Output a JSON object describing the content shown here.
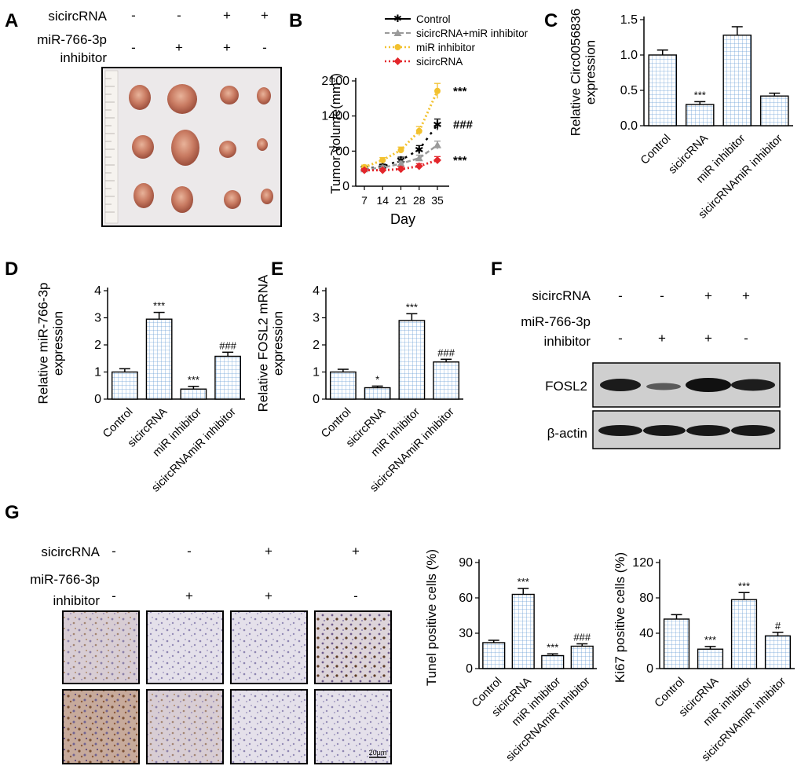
{
  "panel_labels": [
    "A",
    "B",
    "C",
    "D",
    "E",
    "F",
    "G"
  ],
  "treatment": {
    "sicircRNA_label": "sicircRNA",
    "inhibitor_label_1": "miR-766-3p",
    "inhibitor_label_2": "inhibitor",
    "sicircRNA_signs": [
      "-",
      "-",
      "+",
      "+"
    ],
    "inhibitor_signs": [
      "-",
      "+",
      "+",
      "-"
    ]
  },
  "blot": {
    "band1": "FOSL2",
    "band2": "β-actin"
  },
  "scale_bar": "20μm",
  "colors": {
    "hatch": "#6fa3d8",
    "control": "#000000",
    "combo": "#9a9a9a",
    "inhibitor": "#f2c12e",
    "sicirc": "#e3262b"
  },
  "chart_data": [
    {
      "id": "B",
      "type": "line",
      "xlabel": "Day",
      "ylabel": "Tumor volume(mm3)",
      "x": [
        7,
        14,
        21,
        28,
        35
      ],
      "xticks": [
        "7",
        "14",
        "21",
        "28",
        "35"
      ],
      "yticks": [
        "0",
        "700",
        "1400",
        "2100"
      ],
      "ylim": [
        0,
        2100
      ],
      "series": [
        {
          "name": "Control",
          "values": [
            350,
            390,
            520,
            730,
            1230
          ],
          "errors": [
            40,
            50,
            60,
            80,
            110
          ]
        },
        {
          "name": "sicircRNA+miR inhibitor",
          "values": [
            340,
            370,
            450,
            560,
            820
          ],
          "errors": [
            30,
            40,
            50,
            60,
            80
          ]
        },
        {
          "name": "miR inhibitor",
          "values": [
            380,
            520,
            720,
            1100,
            1900
          ],
          "errors": [
            40,
            50,
            60,
            90,
            150
          ]
        },
        {
          "name": "sicircRNA",
          "values": [
            320,
            320,
            340,
            400,
            520
          ],
          "errors": [
            30,
            30,
            50,
            50,
            70
          ]
        }
      ],
      "annotations": [
        "***",
        "###",
        "***"
      ]
    },
    {
      "id": "C",
      "type": "bar",
      "ylabel": "Relative Circ0056836 expression",
      "categories": [
        "Control",
        "sicircRNA",
        "miR inhibitor",
        "sicircRNAmiR inhibitor"
      ],
      "values": [
        1.0,
        0.3,
        1.28,
        0.42
      ],
      "errors": [
        0.07,
        0.04,
        0.12,
        0.04
      ],
      "annotations": [
        "",
        "***",
        "",
        ""
      ],
      "yticks": [
        "0.0",
        "0.5",
        "1.0",
        "1.5"
      ],
      "ylim": [
        0,
        1.5
      ]
    },
    {
      "id": "D",
      "type": "bar",
      "ylabel": "Relative miR-766-3p expression",
      "categories": [
        "Control",
        "sicircRNA",
        "miR inhibitor",
        "sicircRNAmiR inhibitor"
      ],
      "values": [
        1.0,
        2.95,
        0.37,
        1.58
      ],
      "errors": [
        0.12,
        0.25,
        0.1,
        0.15
      ],
      "annotations": [
        "",
        "***",
        "***",
        "###"
      ],
      "yticks": [
        "0",
        "1",
        "2",
        "3",
        "4"
      ],
      "ylim": [
        0,
        4
      ]
    },
    {
      "id": "E",
      "type": "bar",
      "ylabel": "Relative FOSL2 mRNA expression",
      "categories": [
        "Control",
        "sicircRNA",
        "miR inhibitor",
        "sicircRNAmiR inhibitor"
      ],
      "values": [
        1.0,
        0.42,
        2.9,
        1.37
      ],
      "errors": [
        0.1,
        0.06,
        0.25,
        0.1
      ],
      "annotations": [
        "",
        "*",
        "***",
        "###"
      ],
      "yticks": [
        "0",
        "1",
        "2",
        "3",
        "4"
      ],
      "ylim": [
        0,
        4
      ]
    },
    {
      "id": "G1",
      "type": "bar",
      "ylabel": "Tunel positive cells (%)",
      "categories": [
        "Control",
        "sicircRNA",
        "miR inhibitor",
        "sicircRNAmiR inhibitor"
      ],
      "values": [
        22,
        63,
        11,
        19
      ],
      "errors": [
        2,
        5,
        1.5,
        2
      ],
      "annotations": [
        "",
        "***",
        "***",
        "###"
      ],
      "yticks": [
        "0",
        "30",
        "60",
        "90"
      ],
      "ylim": [
        0,
        90
      ]
    },
    {
      "id": "G2",
      "type": "bar",
      "ylabel": "Ki67 positive cells (%)",
      "categories": [
        "Control",
        "sicircRNA",
        "miR inhibitor",
        "sicircRNAmiR inhibitor"
      ],
      "values": [
        56,
        22,
        78,
        37
      ],
      "errors": [
        5,
        3,
        8,
        4
      ],
      "annotations": [
        "",
        "***",
        "***",
        "#"
      ],
      "yticks": [
        "0",
        "40",
        "80",
        "120"
      ],
      "ylim": [
        0,
        120
      ]
    }
  ]
}
